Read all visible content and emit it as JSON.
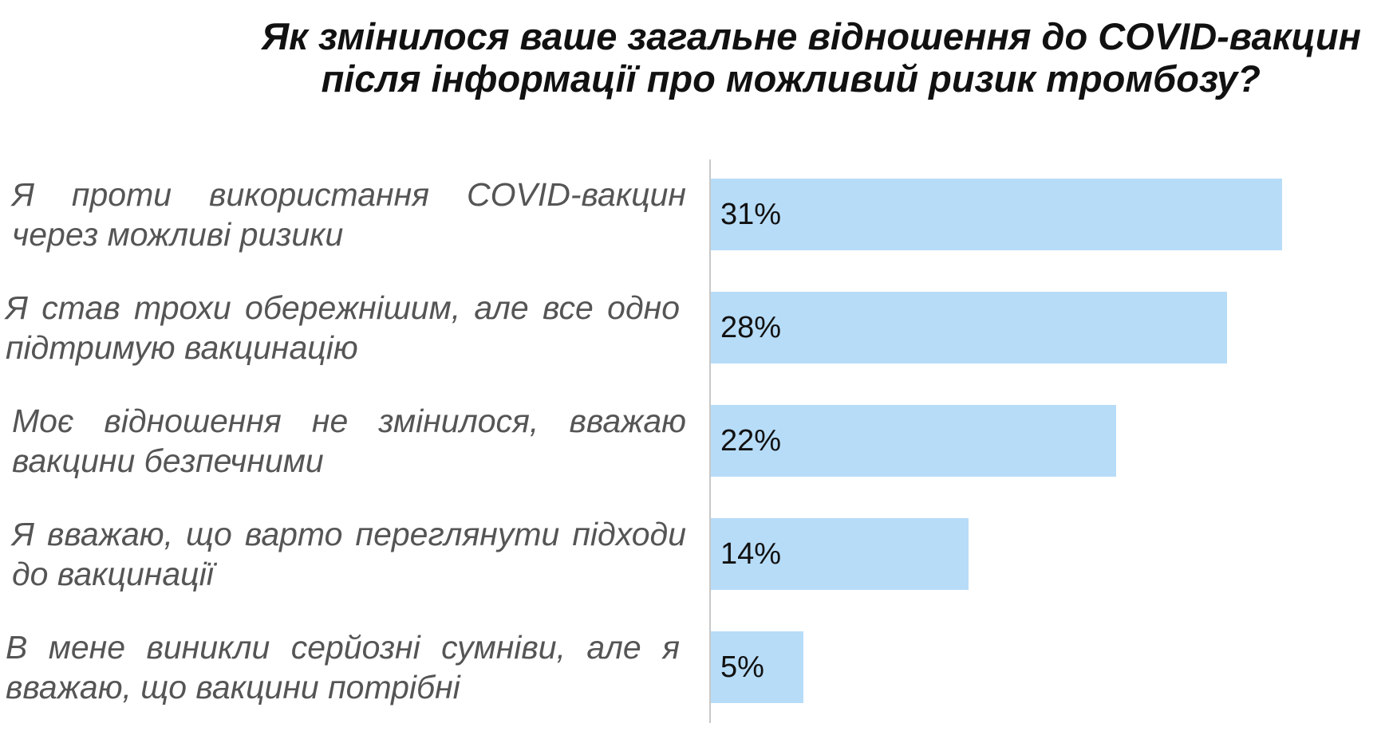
{
  "chart_data": {
    "type": "bar",
    "orientation": "horizontal",
    "title_lines": [
      "Як змінилося ваше загальне відношення до COVID-вакцин",
      "після інформації про можливий ризик тромбозу?"
    ],
    "categories": [
      "Я проти використання COVID-вакцин через можливі ризики",
      "Я став трохи обережнішим, але все одно підтримую вакцинацію",
      "Моє відношення не змінилося, вважаю вакцини безпечними",
      "Я вважаю, що варто переглянути підходи до вакцинації",
      "В мене виникли серйозні сумніви, але я вважаю, що вакцини потрібні"
    ],
    "values": [
      31,
      28,
      22,
      14,
      5
    ],
    "value_labels": [
      "31%",
      "28%",
      "22%",
      "14%",
      "5%"
    ],
    "unit": "%",
    "bar_color": "#b7dcf8",
    "grid": false,
    "legend": "none"
  }
}
